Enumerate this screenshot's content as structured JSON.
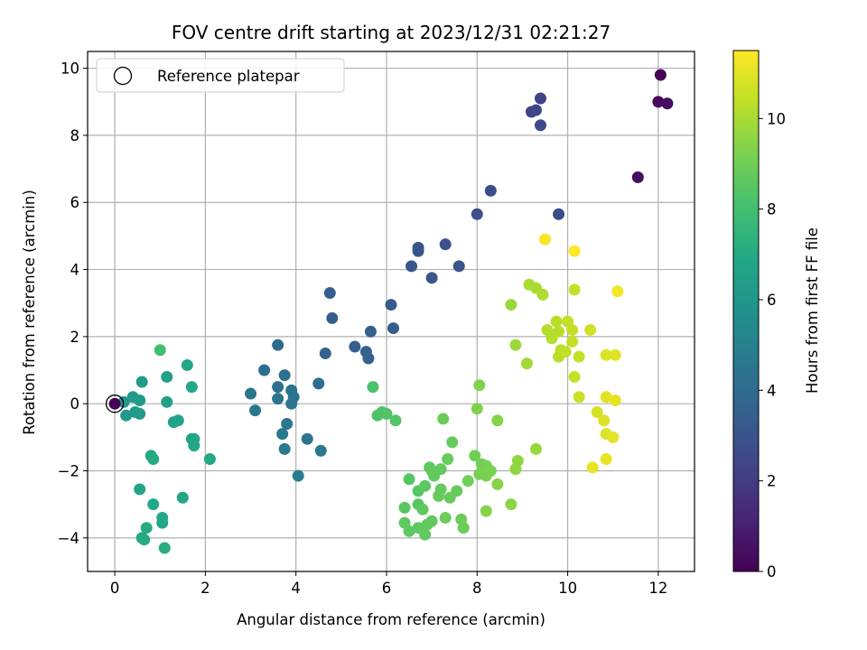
{
  "chart_data": {
    "type": "scatter",
    "title": "FOV centre drift starting at 2023/12/31 02:21:27",
    "xlabel": "Angular distance from reference (arcmin)",
    "ylabel": "Rotation from reference (arcmin)",
    "xlim": [
      -0.6,
      12.8
    ],
    "ylim": [
      -5.0,
      10.5
    ],
    "xticks": [
      0,
      2,
      4,
      6,
      8,
      10,
      12
    ],
    "yticks": [
      -4,
      -2,
      0,
      2,
      4,
      6,
      8,
      10
    ],
    "grid": true,
    "legend": {
      "position": "top-left",
      "entries": [
        {
          "label": "Reference platepar",
          "marker": "open-circle",
          "point": [
            0,
            0
          ]
        }
      ]
    },
    "colorbar": {
      "label": "Hours from first FF file",
      "colormap": "viridis",
      "range": [
        0,
        11.5
      ],
      "ticks": [
        0,
        2,
        4,
        6,
        8,
        10
      ]
    },
    "points": [
      {
        "x": 12.05,
        "y": 9.8,
        "c": 0.0
      },
      {
        "x": 12.0,
        "y": 9.0,
        "c": 0.3
      },
      {
        "x": 12.2,
        "y": 8.95,
        "c": 0.4
      },
      {
        "x": 11.55,
        "y": 6.75,
        "c": 0.5
      },
      {
        "x": 9.4,
        "y": 9.1,
        "c": 2.3
      },
      {
        "x": 9.2,
        "y": 8.7,
        "c": 2.4
      },
      {
        "x": 9.3,
        "y": 8.75,
        "c": 2.4
      },
      {
        "x": 9.4,
        "y": 8.3,
        "c": 2.5
      },
      {
        "x": 8.3,
        "y": 6.35,
        "c": 2.7
      },
      {
        "x": 9.8,
        "y": 5.65,
        "c": 2.6
      },
      {
        "x": 8.0,
        "y": 5.65,
        "c": 2.8
      },
      {
        "x": 6.7,
        "y": 4.65,
        "c": 3.0
      },
      {
        "x": 6.7,
        "y": 4.55,
        "c": 3.0
      },
      {
        "x": 7.3,
        "y": 4.75,
        "c": 2.9
      },
      {
        "x": 7.6,
        "y": 4.1,
        "c": 3.0
      },
      {
        "x": 6.55,
        "y": 4.1,
        "c": 3.1
      },
      {
        "x": 7.0,
        "y": 3.75,
        "c": 3.1
      },
      {
        "x": 4.75,
        "y": 3.3,
        "c": 3.4
      },
      {
        "x": 6.1,
        "y": 2.95,
        "c": 3.3
      },
      {
        "x": 4.8,
        "y": 2.55,
        "c": 3.4
      },
      {
        "x": 6.15,
        "y": 2.25,
        "c": 3.4
      },
      {
        "x": 5.65,
        "y": 2.15,
        "c": 3.5
      },
      {
        "x": 5.3,
        "y": 1.7,
        "c": 3.5
      },
      {
        "x": 5.55,
        "y": 1.55,
        "c": 3.6
      },
      {
        "x": 4.65,
        "y": 1.5,
        "c": 3.6
      },
      {
        "x": 5.6,
        "y": 1.35,
        "c": 3.6
      },
      {
        "x": 3.6,
        "y": 1.75,
        "c": 4.0
      },
      {
        "x": 3.3,
        "y": 1.0,
        "c": 4.2
      },
      {
        "x": 3.75,
        "y": 0.85,
        "c": 4.3
      },
      {
        "x": 4.5,
        "y": 0.6,
        "c": 4.2
      },
      {
        "x": 3.6,
        "y": 0.5,
        "c": 4.3
      },
      {
        "x": 3.9,
        "y": 0.4,
        "c": 4.4
      },
      {
        "x": 3.0,
        "y": 0.3,
        "c": 4.5
      },
      {
        "x": 3.95,
        "y": 0.2,
        "c": 4.4
      },
      {
        "x": 3.6,
        "y": 0.15,
        "c": 4.4
      },
      {
        "x": 3.9,
        "y": 0.0,
        "c": 4.5
      },
      {
        "x": 3.1,
        "y": -0.2,
        "c": 4.5
      },
      {
        "x": 3.8,
        "y": -0.6,
        "c": 4.6
      },
      {
        "x": 3.7,
        "y": -0.9,
        "c": 4.6
      },
      {
        "x": 4.25,
        "y": -1.05,
        "c": 4.5
      },
      {
        "x": 3.75,
        "y": -1.35,
        "c": 4.7
      },
      {
        "x": 4.55,
        "y": -1.4,
        "c": 4.6
      },
      {
        "x": 4.05,
        "y": -2.15,
        "c": 4.8
      },
      {
        "x": 0.2,
        "y": 0.05,
        "c": 6.0
      },
      {
        "x": 0.4,
        "y": 0.2,
        "c": 6.1
      },
      {
        "x": 0.6,
        "y": 0.65,
        "c": 6.3
      },
      {
        "x": 0.55,
        "y": 0.1,
        "c": 6.2
      },
      {
        "x": 0.25,
        "y": -0.35,
        "c": 6.1
      },
      {
        "x": 0.45,
        "y": -0.25,
        "c": 6.2
      },
      {
        "x": 0.55,
        "y": -0.3,
        "c": 6.2
      },
      {
        "x": 1.15,
        "y": 0.8,
        "c": 6.5
      },
      {
        "x": 1.15,
        "y": 0.05,
        "c": 6.5
      },
      {
        "x": 1.3,
        "y": -0.55,
        "c": 6.6
      },
      {
        "x": 1.4,
        "y": -0.5,
        "c": 6.6
      },
      {
        "x": 1.6,
        "y": 1.15,
        "c": 6.8
      },
      {
        "x": 1.7,
        "y": 0.5,
        "c": 6.9
      },
      {
        "x": 1.7,
        "y": -1.05,
        "c": 6.8
      },
      {
        "x": 1.75,
        "y": -1.05,
        "c": 6.8
      },
      {
        "x": 1.75,
        "y": -1.25,
        "c": 6.8
      },
      {
        "x": 0.8,
        "y": -1.55,
        "c": 6.9
      },
      {
        "x": 0.85,
        "y": -1.65,
        "c": 7.0
      },
      {
        "x": 2.1,
        "y": -1.65,
        "c": 6.9
      },
      {
        "x": 0.55,
        "y": -2.55,
        "c": 6.7
      },
      {
        "x": 1.5,
        "y": -2.8,
        "c": 6.8
      },
      {
        "x": 0.85,
        "y": -3.0,
        "c": 6.9
      },
      {
        "x": 1.05,
        "y": -3.4,
        "c": 6.9
      },
      {
        "x": 1.05,
        "y": -3.55,
        "c": 6.9
      },
      {
        "x": 0.7,
        "y": -3.7,
        "c": 7.0
      },
      {
        "x": 0.6,
        "y": -4.0,
        "c": 7.0
      },
      {
        "x": 0.65,
        "y": -4.05,
        "c": 7.0
      },
      {
        "x": 1.1,
        "y": -4.3,
        "c": 7.1
      },
      {
        "x": 1.0,
        "y": 1.6,
        "c": 8.0
      },
      {
        "x": 5.7,
        "y": 0.5,
        "c": 8.2
      },
      {
        "x": 5.8,
        "y": -0.35,
        "c": 8.3
      },
      {
        "x": 5.9,
        "y": -0.25,
        "c": 8.3
      },
      {
        "x": 6.0,
        "y": -0.3,
        "c": 8.3
      },
      {
        "x": 6.2,
        "y": -0.5,
        "c": 8.4
      },
      {
        "x": 6.5,
        "y": -2.25,
        "c": 8.4
      },
      {
        "x": 6.7,
        "y": -2.6,
        "c": 8.5
      },
      {
        "x": 6.4,
        "y": -3.1,
        "c": 8.5
      },
      {
        "x": 6.7,
        "y": -3.0,
        "c": 8.5
      },
      {
        "x": 6.8,
        "y": -3.15,
        "c": 8.6
      },
      {
        "x": 6.4,
        "y": -3.55,
        "c": 8.6
      },
      {
        "x": 6.5,
        "y": -3.8,
        "c": 8.6
      },
      {
        "x": 6.7,
        "y": -3.7,
        "c": 8.6
      },
      {
        "x": 6.85,
        "y": -3.9,
        "c": 8.6
      },
      {
        "x": 6.9,
        "y": -3.6,
        "c": 8.7
      },
      {
        "x": 7.0,
        "y": -3.5,
        "c": 8.7
      },
      {
        "x": 6.85,
        "y": -2.45,
        "c": 8.6
      },
      {
        "x": 6.95,
        "y": -1.9,
        "c": 8.6
      },
      {
        "x": 7.05,
        "y": -2.15,
        "c": 8.7
      },
      {
        "x": 7.0,
        "y": -2.0,
        "c": 8.7
      },
      {
        "x": 7.2,
        "y": -1.95,
        "c": 8.7
      },
      {
        "x": 7.2,
        "y": -2.55,
        "c": 8.7
      },
      {
        "x": 7.15,
        "y": -2.75,
        "c": 8.8
      },
      {
        "x": 7.35,
        "y": -1.65,
        "c": 8.8
      },
      {
        "x": 7.45,
        "y": -1.15,
        "c": 8.8
      },
      {
        "x": 7.25,
        "y": -0.45,
        "c": 8.9
      },
      {
        "x": 7.4,
        "y": -2.8,
        "c": 8.8
      },
      {
        "x": 7.55,
        "y": -2.6,
        "c": 8.8
      },
      {
        "x": 7.3,
        "y": -3.4,
        "c": 8.9
      },
      {
        "x": 7.65,
        "y": -3.45,
        "c": 8.9
      },
      {
        "x": 7.7,
        "y": -3.7,
        "c": 8.9
      },
      {
        "x": 7.8,
        "y": -2.3,
        "c": 9.0
      },
      {
        "x": 7.95,
        "y": -1.55,
        "c": 9.0
      },
      {
        "x": 8.1,
        "y": -1.8,
        "c": 9.1
      },
      {
        "x": 8.05,
        "y": -2.1,
        "c": 9.1
      },
      {
        "x": 8.2,
        "y": -1.85,
        "c": 9.1
      },
      {
        "x": 8.2,
        "y": -2.15,
        "c": 9.2
      },
      {
        "x": 8.3,
        "y": -2.0,
        "c": 9.2
      },
      {
        "x": 8.0,
        "y": -0.15,
        "c": 9.3
      },
      {
        "x": 8.05,
        "y": 0.55,
        "c": 9.3
      },
      {
        "x": 8.45,
        "y": -0.5,
        "c": 9.4
      },
      {
        "x": 8.45,
        "y": -2.4,
        "c": 9.4
      },
      {
        "x": 8.2,
        "y": -3.2,
        "c": 9.4
      },
      {
        "x": 8.75,
        "y": -3.0,
        "c": 9.5
      },
      {
        "x": 8.9,
        "y": -1.7,
        "c": 9.6
      },
      {
        "x": 8.85,
        "y": -1.95,
        "c": 9.6
      },
      {
        "x": 9.3,
        "y": -1.35,
        "c": 9.7
      },
      {
        "x": 8.75,
        "y": 2.95,
        "c": 9.8
      },
      {
        "x": 8.85,
        "y": 1.75,
        "c": 9.8
      },
      {
        "x": 9.1,
        "y": 1.2,
        "c": 9.9
      },
      {
        "x": 9.15,
        "y": 3.55,
        "c": 10.0
      },
      {
        "x": 9.3,
        "y": 3.45,
        "c": 10.0
      },
      {
        "x": 9.45,
        "y": 3.25,
        "c": 10.1
      },
      {
        "x": 9.55,
        "y": 2.2,
        "c": 10.2
      },
      {
        "x": 9.65,
        "y": 1.95,
        "c": 10.2
      },
      {
        "x": 9.75,
        "y": 2.45,
        "c": 10.3
      },
      {
        "x": 9.8,
        "y": 2.15,
        "c": 10.3
      },
      {
        "x": 9.85,
        "y": 1.6,
        "c": 10.3
      },
      {
        "x": 9.8,
        "y": 1.4,
        "c": 10.3
      },
      {
        "x": 9.95,
        "y": 1.55,
        "c": 10.4
      },
      {
        "x": 10.0,
        "y": 2.45,
        "c": 10.4
      },
      {
        "x": 10.1,
        "y": 2.2,
        "c": 10.4
      },
      {
        "x": 10.1,
        "y": 1.85,
        "c": 10.5
      },
      {
        "x": 10.15,
        "y": 3.4,
        "c": 10.5
      },
      {
        "x": 10.25,
        "y": 1.4,
        "c": 10.5
      },
      {
        "x": 10.15,
        "y": 0.8,
        "c": 10.5
      },
      {
        "x": 10.25,
        "y": 0.2,
        "c": 10.6
      },
      {
        "x": 10.5,
        "y": 2.2,
        "c": 10.7
      },
      {
        "x": 10.65,
        "y": -0.25,
        "c": 10.8
      },
      {
        "x": 10.8,
        "y": -0.5,
        "c": 10.9
      },
      {
        "x": 10.85,
        "y": -0.9,
        "c": 10.9
      },
      {
        "x": 10.85,
        "y": 1.45,
        "c": 10.9
      },
      {
        "x": 10.85,
        "y": 0.2,
        "c": 11.0
      },
      {
        "x": 11.0,
        "y": -1.0,
        "c": 11.0
      },
      {
        "x": 11.05,
        "y": 1.45,
        "c": 11.0
      },
      {
        "x": 11.05,
        "y": 0.1,
        "c": 11.1
      },
      {
        "x": 10.85,
        "y": -1.65,
        "c": 11.1
      },
      {
        "x": 10.55,
        "y": -1.9,
        "c": 11.1
      },
      {
        "x": 11.1,
        "y": 3.35,
        "c": 11.3
      },
      {
        "x": 9.5,
        "y": 4.9,
        "c": 11.4
      },
      {
        "x": 10.15,
        "y": 4.55,
        "c": 11.5
      }
    ]
  }
}
